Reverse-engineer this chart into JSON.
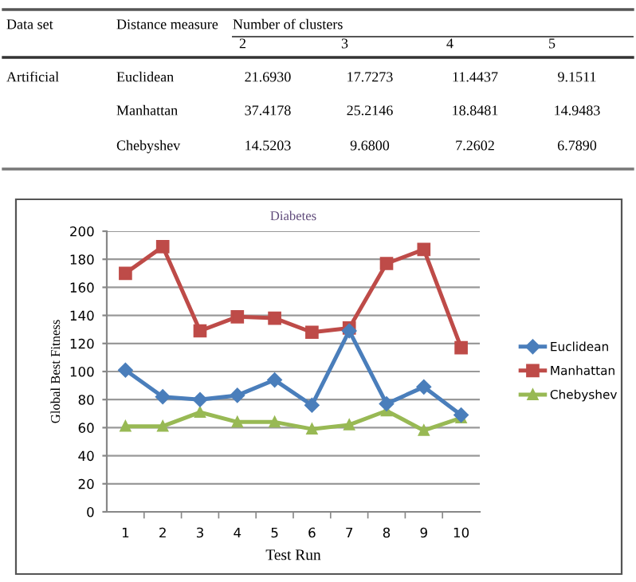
{
  "chart_data": [
    {
      "type": "heatmap",
      "xlabel": "Number of clusters",
      "annotations": [
        "Data set",
        "Distance measure",
        "Artificial"
      ],
      "categories": [
        "2",
        "3",
        "4",
        "5"
      ],
      "y_categories": [
        "Euclidean",
        "Manhattan",
        "Chebyshev"
      ],
      "cells": [
        [
          21.693,
          17.7273,
          11.4437,
          9.1511
        ],
        [
          37.4178,
          25.2146,
          18.8481,
          14.9483
        ],
        [
          14.5203,
          9.68,
          7.2602,
          6.789
        ]
      ],
      "cell_labels": [
        [
          "21.6930",
          "17.7273",
          "11.4437",
          "9.1511"
        ],
        [
          "37.4178",
          "25.2146",
          "18.8481",
          "14.9483"
        ],
        [
          "14.5203",
          "9.6800",
          "7.2602",
          "6.7890"
        ]
      ]
    },
    {
      "type": "line",
      "title": "Diabetes",
      "xlabel": "Test Run",
      "ylabel": "Global Best Fitness",
      "categories": [
        "1",
        "2",
        "3",
        "4",
        "5",
        "6",
        "7",
        "8",
        "9",
        "10"
      ],
      "ylim": [
        0,
        200
      ],
      "yticks": [
        0,
        20,
        40,
        60,
        80,
        100,
        120,
        140,
        160,
        180,
        200
      ],
      "grid": "y",
      "legend": "right",
      "series": [
        {
          "name": "Euclidean",
          "color": "#4a7ebb",
          "marker": "diamond",
          "values": [
            101,
            82,
            80,
            83,
            94,
            76,
            129,
            77,
            89,
            69
          ]
        },
        {
          "name": "Manhattan",
          "color": "#be4b48",
          "marker": "square",
          "values": [
            170,
            189,
            129,
            139,
            138,
            128,
            131,
            177,
            187,
            117
          ]
        },
        {
          "name": "Chebyshev",
          "color": "#98b954",
          "marker": "triangle",
          "values": [
            61,
            61,
            71,
            64,
            64,
            59,
            62,
            72,
            58,
            67
          ]
        }
      ]
    }
  ]
}
